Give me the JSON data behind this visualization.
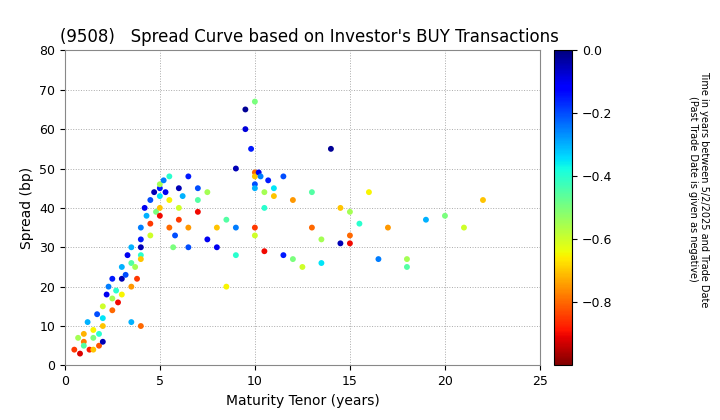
{
  "title": "(9508)   Spread Curve based on Investor's BUY Transactions",
  "xlabel": "Maturity Tenor (years)",
  "ylabel": "Spread (bp)",
  "xlim": [
    0,
    25
  ],
  "ylim": [
    0,
    80
  ],
  "xticks": [
    0,
    5,
    10,
    15,
    20,
    25
  ],
  "yticks": [
    0,
    10,
    20,
    30,
    40,
    50,
    60,
    70,
    80
  ],
  "colorbar_label_line1": "Time in years between 5/2/2025 and Trade Date",
  "colorbar_label_line2": "(Past Trade Date is given as negative)",
  "cbar_vmin": -1.0,
  "cbar_vmax": 0.0,
  "cbar_ticks": [
    0.0,
    -0.2,
    -0.4,
    -0.6,
    -0.8
  ],
  "background_color": "#ffffff",
  "scatter_points": [
    [
      0.5,
      4.0,
      -0.85
    ],
    [
      0.7,
      7.0,
      -0.55
    ],
    [
      0.8,
      3.0,
      -0.92
    ],
    [
      1.0,
      6.0,
      -0.78
    ],
    [
      1.0,
      5.0,
      -0.45
    ],
    [
      1.0,
      8.0,
      -0.72
    ],
    [
      1.2,
      11.0,
      -0.3
    ],
    [
      1.3,
      4.0,
      -0.88
    ],
    [
      1.5,
      9.0,
      -0.65
    ],
    [
      1.5,
      7.0,
      -0.5
    ],
    [
      1.7,
      13.0,
      -0.2
    ],
    [
      1.8,
      5.0,
      -0.82
    ],
    [
      1.8,
      8.0,
      -0.4
    ],
    [
      2.0,
      10.0,
      -0.7
    ],
    [
      2.0,
      15.0,
      -0.6
    ],
    [
      2.0,
      12.0,
      -0.35
    ],
    [
      2.2,
      18.0,
      -0.1
    ],
    [
      2.3,
      20.0,
      -0.25
    ],
    [
      2.5,
      22.0,
      -0.15
    ],
    [
      2.5,
      17.0,
      -0.55
    ],
    [
      2.5,
      14.0,
      -0.8
    ],
    [
      2.7,
      19.0,
      -0.4
    ],
    [
      2.8,
      16.0,
      -0.9
    ],
    [
      3.0,
      22.0,
      -0.05
    ],
    [
      3.0,
      25.0,
      -0.3
    ],
    [
      3.0,
      18.0,
      -0.65
    ],
    [
      3.2,
      23.0,
      -0.2
    ],
    [
      3.3,
      28.0,
      -0.1
    ],
    [
      3.5,
      20.0,
      -0.75
    ],
    [
      3.5,
      26.0,
      -0.45
    ],
    [
      3.5,
      30.0,
      -0.3
    ],
    [
      3.7,
      25.0,
      -0.55
    ],
    [
      3.8,
      22.0,
      -0.85
    ],
    [
      4.0,
      30.0,
      -0.05
    ],
    [
      4.0,
      28.0,
      -0.4
    ],
    [
      4.0,
      32.0,
      -0.15
    ],
    [
      4.0,
      27.0,
      -0.7
    ],
    [
      4.0,
      35.0,
      -0.25
    ],
    [
      4.2,
      40.0,
      -0.1
    ],
    [
      4.3,
      38.0,
      -0.3
    ],
    [
      4.5,
      33.0,
      -0.6
    ],
    [
      4.5,
      42.0,
      -0.2
    ],
    [
      4.5,
      36.0,
      -0.85
    ],
    [
      4.7,
      44.0,
      -0.05
    ],
    [
      4.8,
      39.0,
      -0.5
    ],
    [
      5.0,
      45.0,
      -0.15
    ],
    [
      5.0,
      43.0,
      -0.35
    ],
    [
      5.0,
      40.0,
      -0.7
    ],
    [
      5.0,
      46.0,
      -0.55
    ],
    [
      5.0,
      38.0,
      -0.9
    ],
    [
      5.2,
      47.0,
      -0.25
    ],
    [
      5.3,
      44.0,
      -0.1
    ],
    [
      5.5,
      42.0,
      -0.65
    ],
    [
      5.5,
      48.0,
      -0.4
    ],
    [
      5.5,
      35.0,
      -0.8
    ],
    [
      5.7,
      30.0,
      -0.5
    ],
    [
      5.8,
      33.0,
      -0.2
    ],
    [
      6.0,
      45.0,
      -0.05
    ],
    [
      6.0,
      40.0,
      -0.6
    ],
    [
      6.0,
      37.0,
      -0.85
    ],
    [
      6.2,
      43.0,
      -0.3
    ],
    [
      6.5,
      48.0,
      -0.15
    ],
    [
      6.5,
      35.0,
      -0.75
    ],
    [
      7.0,
      42.0,
      -0.45
    ],
    [
      7.0,
      39.0,
      -0.9
    ],
    [
      7.0,
      45.0,
      -0.2
    ],
    [
      7.5,
      44.0,
      -0.55
    ],
    [
      8.0,
      35.0,
      -0.7
    ],
    [
      8.0,
      30.0,
      -0.1
    ],
    [
      8.5,
      20.0,
      -0.65
    ],
    [
      9.0,
      28.0,
      -0.4
    ],
    [
      9.0,
      50.0,
      -0.05
    ],
    [
      9.5,
      65.0,
      -0.02
    ],
    [
      9.5,
      60.0,
      -0.08
    ],
    [
      9.8,
      55.0,
      -0.15
    ],
    [
      10.0,
      67.0,
      -0.5
    ],
    [
      10.0,
      49.0,
      -0.8
    ],
    [
      10.0,
      48.0,
      -0.7
    ],
    [
      10.0,
      46.0,
      -0.2
    ],
    [
      10.0,
      45.0,
      -0.3
    ],
    [
      10.0,
      35.0,
      -0.85
    ],
    [
      10.0,
      33.0,
      -0.6
    ],
    [
      10.2,
      49.0,
      -0.1
    ],
    [
      10.3,
      48.0,
      -0.25
    ],
    [
      10.5,
      44.0,
      -0.55
    ],
    [
      10.5,
      40.0,
      -0.4
    ],
    [
      10.7,
      47.0,
      -0.15
    ],
    [
      11.0,
      43.0,
      -0.7
    ],
    [
      11.0,
      45.0,
      -0.35
    ],
    [
      11.5,
      48.0,
      -0.2
    ],
    [
      12.0,
      42.0,
      -0.75
    ],
    [
      12.0,
      27.0,
      -0.5
    ],
    [
      12.5,
      25.0,
      -0.6
    ],
    [
      13.0,
      44.0,
      -0.45
    ],
    [
      13.0,
      35.0,
      -0.8
    ],
    [
      13.5,
      32.0,
      -0.55
    ],
    [
      14.0,
      55.0,
      -0.02
    ],
    [
      14.5,
      40.0,
      -0.7
    ],
    [
      15.0,
      39.0,
      -0.55
    ],
    [
      15.0,
      33.0,
      -0.8
    ],
    [
      15.0,
      31.0,
      -0.9
    ],
    [
      15.5,
      36.0,
      -0.4
    ],
    [
      16.0,
      44.0,
      -0.65
    ],
    [
      17.0,
      35.0,
      -0.75
    ],
    [
      18.0,
      25.0,
      -0.45
    ],
    [
      19.0,
      37.0,
      -0.3
    ],
    [
      20.0,
      38.0,
      -0.5
    ],
    [
      21.0,
      35.0,
      -0.6
    ],
    [
      22.0,
      42.0,
      -0.7
    ],
    [
      3.5,
      11.0,
      -0.3
    ],
    [
      4.0,
      10.0,
      -0.8
    ],
    [
      2.0,
      6.0,
      -0.05
    ],
    [
      1.5,
      4.0,
      -0.7
    ],
    [
      6.5,
      30.0,
      -0.2
    ],
    [
      7.5,
      32.0,
      -0.1
    ],
    [
      8.5,
      37.0,
      -0.45
    ],
    [
      9.0,
      35.0,
      -0.25
    ],
    [
      10.5,
      29.0,
      -0.9
    ],
    [
      11.5,
      28.0,
      -0.15
    ],
    [
      13.5,
      26.0,
      -0.35
    ],
    [
      14.5,
      31.0,
      -0.05
    ],
    [
      16.5,
      27.0,
      -0.25
    ],
    [
      18.0,
      27.0,
      -0.55
    ]
  ],
  "dot_size": 18,
  "colormap": "jet_r",
  "grid_color": "#aaaaaa",
  "grid_style": "dotted",
  "tick_fontsize": 9,
  "label_fontsize": 10,
  "title_fontsize": 12
}
